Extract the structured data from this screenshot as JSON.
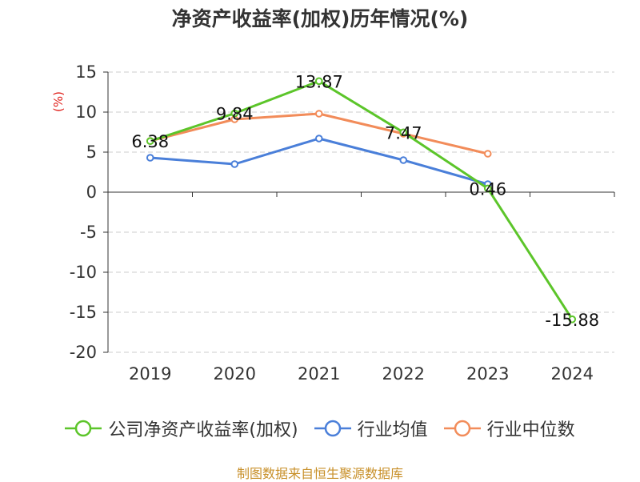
{
  "title": "净资产收益率(加权)历年情况(%)",
  "source": "制图数据来自恒生聚源数据库",
  "chart_data": {
    "type": "line",
    "title": "净资产收益率(加权)历年情况(%)",
    "unit_label": "(%)",
    "categories": [
      "2019",
      "2020",
      "2021",
      "2022",
      "2023",
      "2024"
    ],
    "ylim": [
      -20,
      15
    ],
    "yticks": [
      15,
      10,
      5,
      0,
      -5,
      -10,
      -15,
      -20
    ],
    "ytick_labels": [
      "15",
      "10",
      "5",
      "0",
      "-5",
      "-10",
      "-15",
      "-20"
    ],
    "grid": true,
    "legend_position": "bottom",
    "series": [
      {
        "name": "公司净资产收益率(加权)",
        "color": "#5cc52a",
        "values": [
          6.38,
          9.84,
          13.87,
          7.47,
          0.46,
          -15.88
        ],
        "labels": [
          "6.38",
          "9.84",
          "13.87",
          "7.47",
          "0.46",
          "-15.88"
        ]
      },
      {
        "name": "行业均值",
        "color": "#4a7fd9",
        "values": [
          4.3,
          3.5,
          6.7,
          4.0,
          1.0,
          null
        ]
      },
      {
        "name": "行业中位数",
        "color": "#f28c5a",
        "values": [
          6.4,
          9.1,
          9.8,
          7.3,
          4.8,
          null
        ]
      }
    ]
  }
}
